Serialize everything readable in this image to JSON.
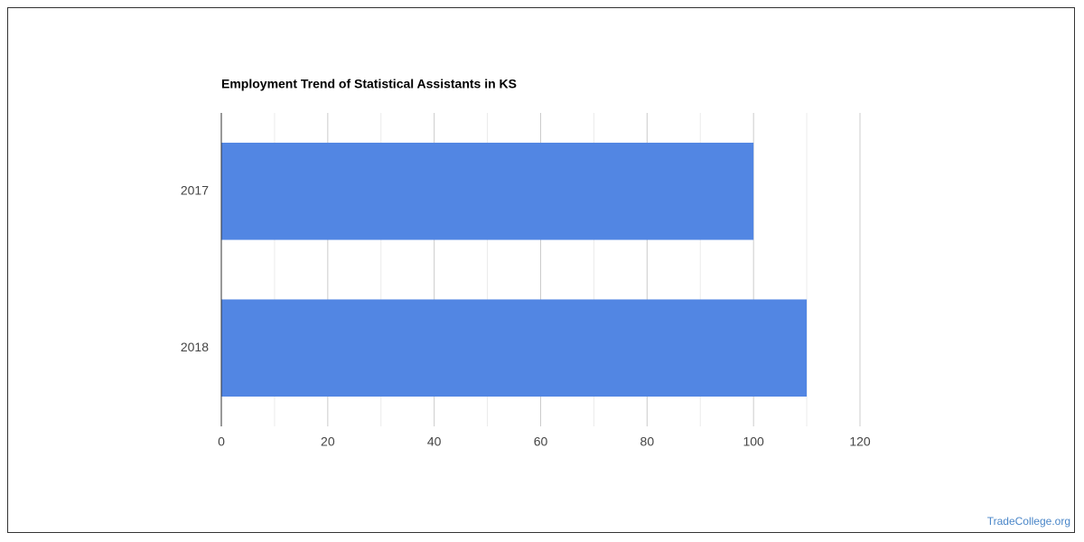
{
  "chart_data": {
    "type": "bar",
    "orientation": "horizontal",
    "title": "Employment Trend of Statistical Assistants in KS",
    "categories": [
      "2017",
      "2018"
    ],
    "values": [
      100,
      110
    ],
    "color": "#5286e3",
    "xlim": [
      0,
      120
    ],
    "xticks": [
      0,
      20,
      40,
      60,
      80,
      100,
      120
    ],
    "xminorticks": [
      10,
      30,
      50,
      70,
      90,
      110
    ],
    "grid": true
  },
  "watermark": "TradeCollege.org"
}
